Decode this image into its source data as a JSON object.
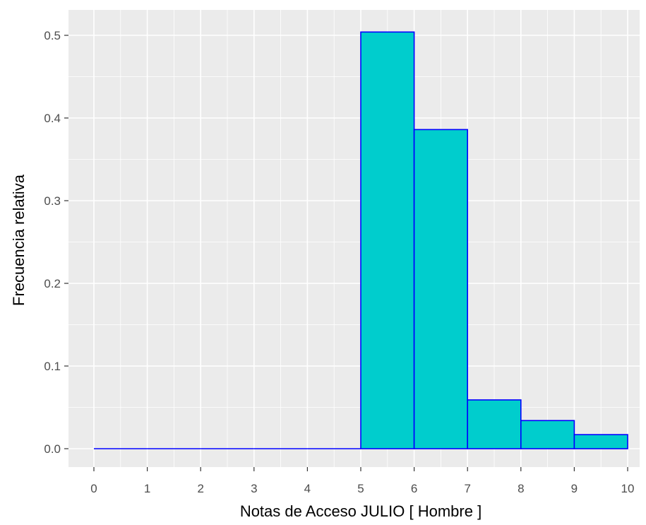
{
  "chart_data": {
    "type": "bar",
    "subtype": "histogram",
    "xlabel": "Notas de Acceso JULIO  [ Hombre ]",
    "ylabel": "Frecuencia relativa",
    "xlim": [
      0,
      10
    ],
    "ylim": [
      0,
      0.5
    ],
    "x_ticks": [
      "0",
      "1",
      "2",
      "3",
      "4",
      "5",
      "6",
      "7",
      "8",
      "9",
      "10"
    ],
    "y_ticks": [
      "0.0",
      "0.1",
      "0.2",
      "0.3",
      "0.4",
      "0.5"
    ],
    "bins": [
      {
        "from": 0,
        "to": 1,
        "value": 0
      },
      {
        "from": 1,
        "to": 2,
        "value": 0
      },
      {
        "from": 2,
        "to": 3,
        "value": 0
      },
      {
        "from": 3,
        "to": 4,
        "value": 0
      },
      {
        "from": 4,
        "to": 5,
        "value": 0
      },
      {
        "from": 5,
        "to": 6,
        "value": 0.504
      },
      {
        "from": 6,
        "to": 7,
        "value": 0.386
      },
      {
        "from": 7,
        "to": 8,
        "value": 0.059
      },
      {
        "from": 8,
        "to": 9,
        "value": 0.034
      },
      {
        "from": 9,
        "to": 10,
        "value": 0.017
      }
    ],
    "grid": true,
    "colors": {
      "panel_background": "#ebebeb",
      "grid_line": "#ffffff",
      "bar_fill": "#00cdcd",
      "bar_outline": "#0000ff",
      "tick_mark": "#333333"
    }
  }
}
